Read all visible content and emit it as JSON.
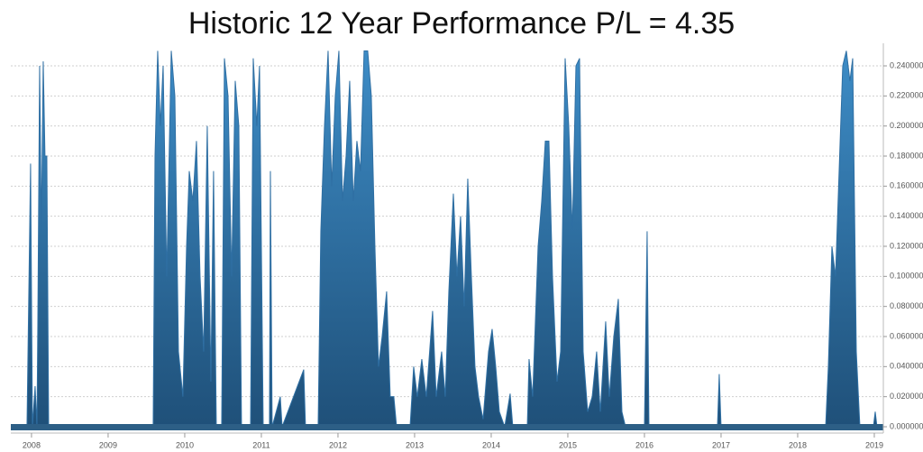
{
  "chart_data": {
    "type": "area",
    "title": "Historic 12 Year Performance P/L = 4.35",
    "color": "#2f6fa3",
    "grid": true,
    "xlim": [
      2007.73,
      2019.118
    ],
    "xticks": [
      2008,
      2009,
      2010,
      2011,
      2012,
      2013,
      2014,
      2015,
      2016,
      2017,
      2018,
      2019
    ],
    "ylim": [
      0,
      0.255
    ],
    "yticks": [
      {
        "value": 0,
        "label": "0.000000"
      },
      {
        "value": 0.02,
        "label": "0.020000"
      },
      {
        "value": 0.04,
        "label": "0.040000"
      },
      {
        "value": 0.06,
        "label": "0.060000"
      },
      {
        "value": 0.08,
        "label": "0.080000"
      },
      {
        "value": 0.1,
        "label": "0.100000"
      },
      {
        "value": 0.12,
        "label": "0.120000"
      },
      {
        "value": 0.14,
        "label": "0.140000"
      },
      {
        "value": 0.16,
        "label": "0.160000"
      },
      {
        "value": 0.18,
        "label": "0.180000"
      },
      {
        "value": 0.2,
        "label": "0.200000"
      },
      {
        "value": 0.22,
        "label": "0.220000"
      },
      {
        "value": 0.24,
        "label": "0.240000"
      }
    ],
    "x": [
      2007.73,
      2007.941,
      2007.988,
      2008.012,
      2008.047,
      2008.071,
      2008.082,
      2008.106,
      2008.129,
      2008.153,
      2008.176,
      2008.2,
      2008.224,
      2009.588,
      2009.612,
      2009.647,
      2009.682,
      2009.718,
      2009.765,
      2009.824,
      2009.871,
      2009.918,
      2009.976,
      2010.024,
      2010.059,
      2010.106,
      2010.153,
      2010.2,
      2010.247,
      2010.294,
      2010.341,
      2010.376,
      2010.412,
      2010.482,
      2010.518,
      2010.565,
      2010.612,
      2010.659,
      2010.706,
      2010.741,
      2010.859,
      2010.894,
      2010.941,
      2010.976,
      2011.024,
      2011.106,
      2011.118,
      2011.141,
      2011.247,
      2011.271,
      2011.553,
      2011.576,
      2011.741,
      2011.776,
      2011.824,
      2011.871,
      2011.918,
      2011.965,
      2012.012,
      2012.059,
      2012.106,
      2012.153,
      2012.2,
      2012.247,
      2012.294,
      2012.341,
      2012.388,
      2012.435,
      2012.482,
      2012.529,
      2012.576,
      2012.635,
      2012.682,
      2012.729,
      2012.765,
      2012.941,
      2012.988,
      2013.035,
      2013.094,
      2013.153,
      2013.235,
      2013.282,
      2013.353,
      2013.4,
      2013.447,
      2013.506,
      2013.553,
      2013.6,
      2013.647,
      2013.694,
      2013.741,
      2013.788,
      2013.835,
      2013.894,
      2013.965,
      2014.012,
      2014.059,
      2014.106,
      2014.176,
      2014.247,
      2014.282,
      2014.471,
      2014.494,
      2014.541,
      2014.612,
      2014.659,
      2014.706,
      2014.753,
      2014.8,
      2014.859,
      2014.906,
      2014.965,
      2015.012,
      2015.059,
      2015.106,
      2015.153,
      2015.2,
      2015.259,
      2015.318,
      2015.376,
      2015.424,
      2015.494,
      2015.541,
      2015.6,
      2015.659,
      2015.706,
      2015.753,
      2016.0,
      2016.035,
      2016.059,
      2016.953,
      2016.976,
      2017.0,
      2018.365,
      2018.4,
      2018.447,
      2018.494,
      2018.541,
      2018.588,
      2018.635,
      2018.682,
      2018.718,
      2018.765,
      2018.812,
      2018.988,
      2019.012,
      2019.035,
      2019.094
    ],
    "values": [
      0,
      0,
      0.175,
      0,
      0.027,
      0,
      0.065,
      0.24,
      0.13,
      0.243,
      0.18,
      0.18,
      0,
      0,
      0.18,
      0.25,
      0.2,
      0.24,
      0.1,
      0.25,
      0.22,
      0.05,
      0.02,
      0.12,
      0.17,
      0.15,
      0.19,
      0.1,
      0.05,
      0.2,
      0.03,
      0.17,
      0,
      0,
      0.245,
      0.22,
      0.1,
      0.23,
      0.2,
      0,
      0,
      0.245,
      0.2,
      0.24,
      0,
      0,
      0.17,
      0,
      0.02,
      0,
      0.038,
      0,
      0,
      0.13,
      0.2,
      0.25,
      0.16,
      0.22,
      0.25,
      0.15,
      0.18,
      0.23,
      0.15,
      0.19,
      0.17,
      0.25,
      0.25,
      0.22,
      0.12,
      0.04,
      0.06,
      0.09,
      0.02,
      0.02,
      0,
      0,
      0.04,
      0.02,
      0.045,
      0.02,
      0.077,
      0.02,
      0.05,
      0.02,
      0.09,
      0.155,
      0.1,
      0.14,
      0.08,
      0.165,
      0.1,
      0.04,
      0.02,
      0.005,
      0.05,
      0.065,
      0.04,
      0.01,
      0,
      0.022,
      0,
      0,
      0.045,
      0.02,
      0.12,
      0.15,
      0.19,
      0.19,
      0.1,
      0.03,
      0.05,
      0.245,
      0.2,
      0.13,
      0.24,
      0.245,
      0.05,
      0.01,
      0.02,
      0.05,
      0.01,
      0.07,
      0.02,
      0.06,
      0.085,
      0.01,
      0,
      0,
      0.13,
      0,
      0,
      0.035,
      0,
      0,
      0.04,
      0.12,
      0.1,
      0.17,
      0.24,
      0.25,
      0.23,
      0.245,
      0.05,
      0,
      0,
      0.01,
      0,
      0
    ]
  }
}
